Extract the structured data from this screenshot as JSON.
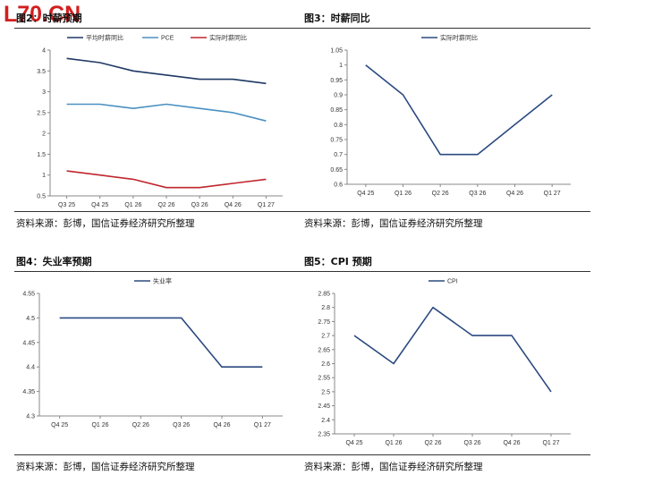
{
  "logo": "L70.CN",
  "panels": [
    {
      "title": "图2：时薪预期",
      "source": "资料来源：彭博，国信证券经济研究所整理",
      "chart_data": {
        "type": "line",
        "categories": [
          "Q3 25",
          "Q4 25",
          "Q1 26",
          "Q2 26",
          "Q3 26",
          "Q4 26",
          "Q1 27"
        ],
        "ylim": [
          0.5,
          4
        ],
        "yticks": [
          "0.5",
          "1",
          "1.5",
          "2",
          "2.5",
          "3",
          "3.5",
          "4"
        ],
        "legend": "top",
        "series": [
          {
            "name": "平均时薪同比",
            "color": "#1f3864",
            "values": [
              3.8,
              3.7,
              3.5,
              3.4,
              3.3,
              3.3,
              3.2
            ]
          },
          {
            "name": "PCE",
            "color": "#4a90c2",
            "values": [
              2.7,
              2.7,
              2.6,
              2.7,
              2.6,
              2.5,
              2.3
            ]
          },
          {
            "name": "实际时薪同比",
            "color": "#c0262d",
            "values": [
              1.1,
              1.0,
              0.9,
              0.7,
              0.7,
              0.8,
              0.9
            ]
          }
        ]
      }
    },
    {
      "title": "图3：时薪同比",
      "source": "资料来源：彭博，国信证券经济研究所整理",
      "chart_data": {
        "type": "line",
        "categories": [
          "Q4 25",
          "Q1 26",
          "Q2 26",
          "Q3 26",
          "Q4 26",
          "Q1 27"
        ],
        "ylim": [
          0.6,
          1.05
        ],
        "yticks": [
          "0.6",
          "0.65",
          "0.7",
          "0.75",
          "0.8",
          "0.85",
          "0.9",
          "0.95",
          "1",
          "1.05"
        ],
        "legend": "top",
        "series": [
          {
            "name": "实际时薪同比",
            "color": "#2b4a80",
            "values": [
              1.0,
              0.9,
              0.7,
              0.7,
              0.8,
              0.9
            ]
          }
        ]
      }
    },
    {
      "title": "图4：失业率预期",
      "source": "资料来源：彭博，国信证券经济研究所整理",
      "chart_data": {
        "type": "line",
        "categories": [
          "Q4 25",
          "Q1 26",
          "Q2 26",
          "Q3 26",
          "Q4 26",
          "Q1 27"
        ],
        "ylim": [
          4.3,
          4.55
        ],
        "yticks": [
          "4.3",
          "4.35",
          "4.4",
          "4.45",
          "4.5",
          "4.55"
        ],
        "legend": "top",
        "series": [
          {
            "name": "失业率",
            "color": "#2b4a80",
            "values": [
              4.5,
              4.5,
              4.5,
              4.5,
              4.4,
              4.4
            ]
          }
        ]
      }
    },
    {
      "title": "图5：CPI 预期",
      "source": "资料来源：彭博，国信证券经济研究所整理",
      "chart_data": {
        "type": "line",
        "categories": [
          "Q4 25",
          "Q1 26",
          "Q2 26",
          "Q3 26",
          "Q4 26",
          "Q1 27"
        ],
        "ylim": [
          2.35,
          2.85
        ],
        "yticks": [
          "2.35",
          "2.4",
          "2.45",
          "2.5",
          "2.55",
          "2.6",
          "2.65",
          "2.7",
          "2.75",
          "2.8",
          "2.85"
        ],
        "legend": "top",
        "series": [
          {
            "name": "CPI",
            "color": "#2b4a80",
            "values": [
              2.7,
              2.6,
              2.8,
              2.7,
              2.7,
              2.5
            ]
          }
        ]
      }
    }
  ]
}
